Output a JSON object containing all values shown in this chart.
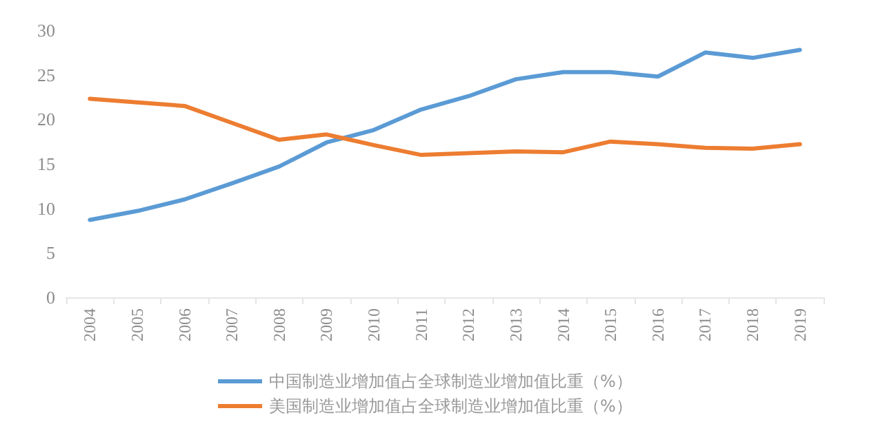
{
  "chart_data": {
    "type": "line",
    "categories": [
      "2004",
      "2005",
      "2006",
      "2007",
      "2008",
      "2009",
      "2010",
      "2011",
      "2012",
      "2013",
      "2014",
      "2015",
      "2016",
      "2017",
      "2018",
      "2019"
    ],
    "series": [
      {
        "name": "中国制造业增加值占全球制造业增加值比重（%）",
        "color": "#5b9bd5",
        "values": [
          8.7,
          9.7,
          11.0,
          12.8,
          14.7,
          17.4,
          18.8,
          21.1,
          22.6,
          24.5,
          25.3,
          25.3,
          24.8,
          27.5,
          26.9,
          27.8
        ]
      },
      {
        "name": "美国制造业增加值占全球制造业增加值比重（%）",
        "color": "#ed7d31",
        "values": [
          22.3,
          21.9,
          21.5,
          19.6,
          17.7,
          18.3,
          17.1,
          16.0,
          16.2,
          16.4,
          16.3,
          17.5,
          17.2,
          16.8,
          16.7,
          17.2
        ]
      }
    ],
    "ylim": [
      0,
      30
    ],
    "yticks": [
      0,
      5,
      10,
      15,
      20,
      25,
      30
    ],
    "grid": false,
    "legend": "bottom",
    "marker": "none",
    "line_style": "solid"
  }
}
